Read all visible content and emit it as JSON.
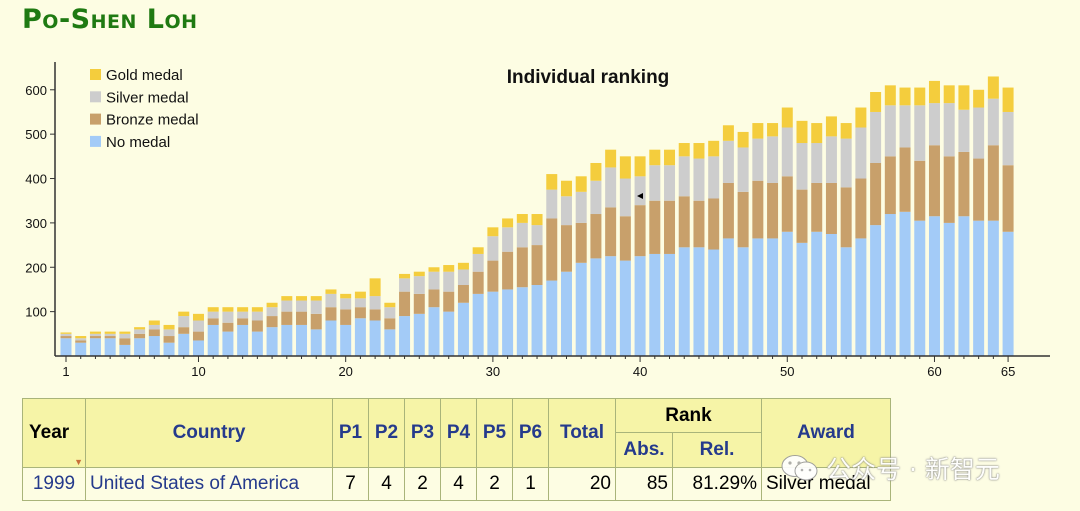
{
  "page": {
    "title": "Po-Shen Loh"
  },
  "chart_data": {
    "type": "bar",
    "stacked": true,
    "title": "Individual ranking",
    "x": [
      1,
      2,
      3,
      4,
      5,
      6,
      7,
      8,
      9,
      10,
      11,
      12,
      13,
      14,
      15,
      16,
      17,
      18,
      19,
      20,
      21,
      22,
      23,
      24,
      25,
      26,
      27,
      28,
      29,
      30,
      31,
      32,
      33,
      34,
      35,
      36,
      37,
      38,
      39,
      40,
      41,
      42,
      43,
      44,
      45,
      46,
      47,
      48,
      49,
      50,
      51,
      52,
      53,
      54,
      55,
      56,
      57,
      58,
      59,
      60,
      61,
      62,
      63,
      64,
      65
    ],
    "x_tick_labels": [
      "1",
      "10",
      "20",
      "30",
      "40",
      "50",
      "60",
      "65"
    ],
    "x_tick_values": [
      1,
      10,
      20,
      30,
      40,
      50,
      60,
      65
    ],
    "y_ticks": [
      100,
      200,
      300,
      400,
      500,
      600
    ],
    "ylim": [
      0,
      660
    ],
    "grid": false,
    "legend_position": "top-left",
    "series": [
      {
        "name": "No medal",
        "color": "#a3cbf7",
        "values": [
          40,
          30,
          40,
          40,
          25,
          40,
          45,
          30,
          50,
          35,
          70,
          55,
          70,
          55,
          65,
          70,
          70,
          60,
          80,
          70,
          85,
          80,
          60,
          90,
          95,
          110,
          100,
          120,
          140,
          145,
          150,
          155,
          160,
          170,
          190,
          210,
          220,
          225,
          215,
          225,
          230,
          230,
          245,
          245,
          240,
          265,
          245,
          265,
          265,
          280,
          255,
          280,
          275,
          245,
          265,
          295,
          320,
          325,
          305,
          315,
          300,
          315,
          305,
          305,
          280
        ]
      },
      {
        "name": "Bronze medal",
        "color": "#c8a06b",
        "values": [
          5,
          5,
          5,
          5,
          15,
          10,
          15,
          15,
          15,
          20,
          15,
          20,
          15,
          25,
          25,
          30,
          30,
          35,
          30,
          35,
          25,
          25,
          25,
          55,
          45,
          40,
          45,
          40,
          50,
          70,
          85,
          90,
          90,
          140,
          105,
          90,
          100,
          110,
          100,
          115,
          120,
          120,
          115,
          105,
          115,
          125,
          125,
          130,
          125,
          125,
          120,
          110,
          115,
          135,
          135,
          140,
          130,
          145,
          135,
          160,
          150,
          145,
          140,
          170,
          150
        ]
      },
      {
        "name": "Silver medal",
        "color": "#cdcdcd",
        "values": [
          5,
          5,
          5,
          5,
          10,
          10,
          10,
          15,
          25,
          25,
          15,
          25,
          15,
          20,
          20,
          25,
          25,
          30,
          30,
          25,
          20,
          30,
          25,
          30,
          40,
          40,
          45,
          35,
          40,
          55,
          55,
          55,
          45,
          65,
          65,
          70,
          75,
          90,
          85,
          65,
          80,
          80,
          90,
          95,
          95,
          95,
          100,
          95,
          105,
          110,
          105,
          90,
          105,
          110,
          115,
          115,
          115,
          95,
          125,
          95,
          120,
          95,
          115,
          105,
          120
        ]
      },
      {
        "name": "Gold medal",
        "color": "#f4cd3d",
        "values": [
          3,
          5,
          5,
          5,
          5,
          5,
          10,
          10,
          10,
          15,
          10,
          10,
          10,
          10,
          10,
          10,
          10,
          10,
          10,
          10,
          15,
          40,
          10,
          10,
          10,
          10,
          15,
          15,
          15,
          20,
          20,
          20,
          25,
          35,
          35,
          35,
          40,
          40,
          50,
          45,
          35,
          35,
          30,
          35,
          35,
          35,
          35,
          35,
          30,
          45,
          50,
          45,
          45,
          35,
          45,
          45,
          45,
          40,
          40,
          50,
          40,
          55,
          40,
          50,
          55
        ]
      }
    ]
  },
  "table": {
    "headers": {
      "year": "Year",
      "country": "Country",
      "p1": "P1",
      "p2": "P2",
      "p3": "P3",
      "p4": "P4",
      "p5": "P5",
      "p6": "P6",
      "total": "Total",
      "rank": "Rank",
      "abs": "Abs.",
      "rel": "Rel.",
      "award": "Award"
    },
    "row": {
      "year": "1999",
      "country": "United States of America",
      "p1": "7",
      "p2": "4",
      "p3": "2",
      "p4": "4",
      "p5": "2",
      "p6": "1",
      "total": "20",
      "abs": "85",
      "rel": "81.29%",
      "award": "Silver medal"
    }
  },
  "watermark": {
    "text": "公众号 · 新智元",
    "icon": "wechat-icon"
  }
}
